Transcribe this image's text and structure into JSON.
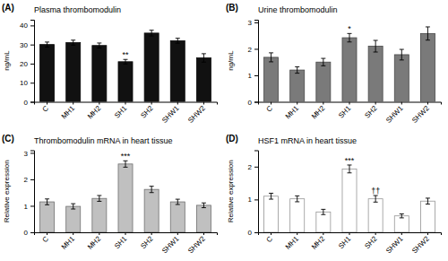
{
  "chart_data": [
    {
      "type": "bar",
      "panel_label": "(A)",
      "title": "Plasma thrombomodulin",
      "ylabel": "ng/mL",
      "categories": [
        "C",
        "MH1",
        "MH2",
        "SH1",
        "SH2",
        "SHW1",
        "SHW2"
      ],
      "values": [
        30.0,
        31.0,
        29.5,
        21.0,
        36.0,
        32.0,
        23.0
      ],
      "errors": [
        1.3,
        1.3,
        1.3,
        1.2,
        1.5,
        1.3,
        2.2
      ],
      "color": "#111111",
      "ylim": [
        0,
        43
      ],
      "yticks": [
        0,
        10,
        20,
        30,
        40
      ],
      "annotations": [
        {
          "category": "SH1",
          "text": "**"
        }
      ]
    },
    {
      "type": "bar",
      "panel_label": "(B)",
      "title": "Urine thrombomodulin",
      "ylabel": "ng/mL",
      "categories": [
        "C",
        "MH1",
        "MH2",
        "SH1",
        "SH2",
        "SHW1",
        "SHW2"
      ],
      "values": [
        1.68,
        1.2,
        1.5,
        2.42,
        2.1,
        1.78,
        2.58
      ],
      "errors": [
        0.17,
        0.12,
        0.14,
        0.16,
        0.22,
        0.2,
        0.25
      ],
      "color": "#7a7a7a",
      "ylim": [
        0,
        3.1
      ],
      "yticks": [
        0,
        1,
        2,
        3
      ],
      "annotations": [
        {
          "category": "SH1",
          "text": "*"
        }
      ]
    },
    {
      "type": "bar",
      "panel_label": "(C)",
      "title": "Thrombomodulin mRNA in heart tissue",
      "ylabel": "Relative expression",
      "categories": [
        "C",
        "MH1",
        "MH2",
        "SH1",
        "SH2",
        "SHW1",
        "SHW2"
      ],
      "values": [
        1.15,
        0.98,
        1.28,
        2.58,
        1.62,
        1.15,
        1.02
      ],
      "errors": [
        0.11,
        0.1,
        0.11,
        0.12,
        0.12,
        0.1,
        0.09
      ],
      "color": "#c0c0c0",
      "ylim": [
        0,
        3.1
      ],
      "yticks": [
        0,
        1,
        2,
        3
      ],
      "annotations": [
        {
          "category": "SH1",
          "text": "***"
        }
      ]
    },
    {
      "type": "bar",
      "panel_label": "(D)",
      "title": "HSF1 mRNA in heart tissue",
      "ylabel": "Relative expression",
      "categories": [
        "C",
        "MH1",
        "MH2",
        "SH1",
        "SH2",
        "SHW1",
        "SHW2"
      ],
      "values": [
        1.1,
        1.02,
        0.62,
        1.93,
        1.02,
        0.5,
        0.95
      ],
      "errors": [
        0.09,
        0.09,
        0.08,
        0.12,
        0.1,
        0.06,
        0.09
      ],
      "color": "#ffffff",
      "ylim": [
        0,
        2.5
      ],
      "yticks": [
        0,
        1,
        2
      ],
      "annotations": [
        {
          "category": "SH1",
          "text": "***"
        },
        {
          "category": "SH2",
          "text": "††"
        }
      ]
    }
  ]
}
